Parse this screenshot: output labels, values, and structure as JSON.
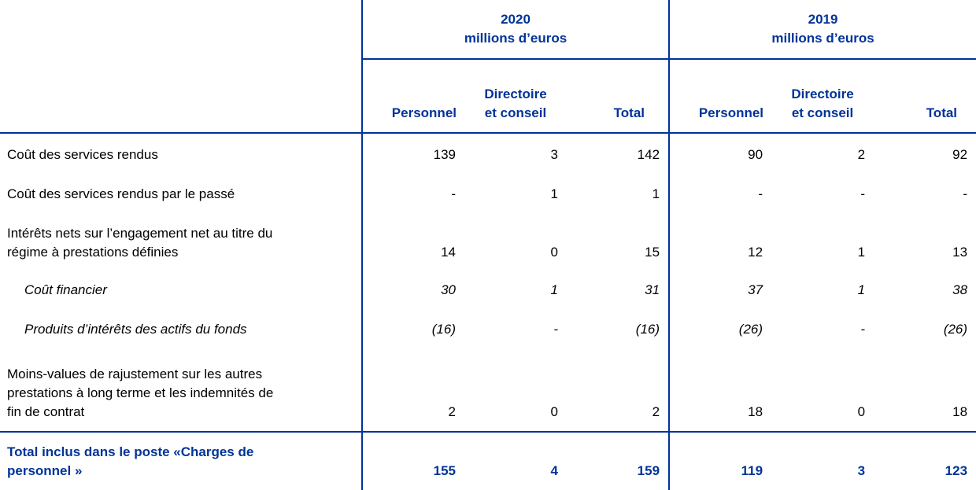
{
  "header": {
    "year_2020": "2020",
    "unit_2020": "millions d’euros",
    "year_2019": "2019",
    "unit_2019": "millions d’euros",
    "columns": [
      "Personnel",
      "Directoire",
      "et conseil",
      "Total"
    ]
  },
  "rows": [
    {
      "label": "Coût des services rendus",
      "values": [
        "139",
        "3",
        "142",
        "90",
        "2",
        "92"
      ]
    },
    {
      "label": "Coût des services rendus par le passé",
      "values": [
        "-",
        "1",
        "1",
        "-",
        "-",
        "-"
      ]
    },
    {
      "label_lines": [
        "Intérêts nets sur l’engagement net au titre du",
        "régime à prestations définies"
      ],
      "values": [
        "14",
        "0",
        "15",
        "12",
        "1",
        "13"
      ]
    },
    {
      "label": "Coût financier",
      "values": [
        "30",
        "1",
        "31",
        "37",
        "1",
        "38"
      ]
    },
    {
      "label": "Produits d’intérêts des actifs du fonds",
      "values": [
        "(16)",
        "-",
        "(16)",
        "(26)",
        "-",
        "(26)"
      ]
    },
    {
      "label_lines": [
        "Moins-values de rajustement sur les autres",
        "prestations à long terme et les indemnités de",
        "fin de contrat"
      ],
      "values": [
        "2",
        "0",
        "2",
        "18",
        "0",
        "18"
      ]
    },
    {
      "label_lines": [
        "Total inclus dans le poste «Charges de",
        "personnel »"
      ],
      "values": [
        "155",
        "4",
        "159",
        "119",
        "3",
        "123"
      ]
    }
  ]
}
